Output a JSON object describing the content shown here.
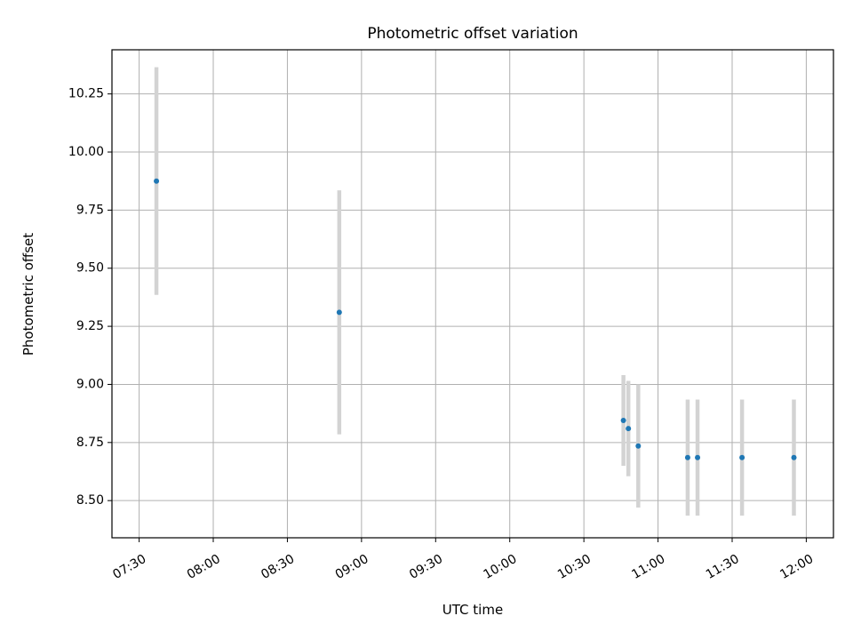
{
  "chart_data": {
    "type": "scatter",
    "title": "Photometric offset variation",
    "xlabel": "UTC time",
    "ylabel": "Photometric offset",
    "x_unit": "UTC time (HH:MM)",
    "xlim": [
      "07:19",
      "12:11"
    ],
    "ylim": [
      8.34,
      10.44
    ],
    "grid": true,
    "x_ticks": [
      "07:30",
      "08:00",
      "08:30",
      "09:00",
      "09:30",
      "10:00",
      "10:30",
      "11:00",
      "11:30",
      "12:00"
    ],
    "y_ticks": [
      8.5,
      8.75,
      9.0,
      9.25,
      9.5,
      9.75,
      10.0,
      10.25
    ],
    "y_tick_labels": [
      "8.50",
      "8.75",
      "9.00",
      "9.25",
      "9.50",
      "9.75",
      "10.00",
      "10.25"
    ],
    "points": [
      {
        "x": "07:37",
        "y": 9.875,
        "err": 0.49
      },
      {
        "x": "08:51",
        "y": 9.31,
        "err": 0.525
      },
      {
        "x": "10:46",
        "y": 8.845,
        "err": 0.195
      },
      {
        "x": "10:48",
        "y": 8.81,
        "err": 0.205
      },
      {
        "x": "10:52",
        "y": 8.735,
        "err": 0.265
      },
      {
        "x": "11:12",
        "y": 8.685,
        "err": 0.25
      },
      {
        "x": "11:16",
        "y": 8.685,
        "err": 0.25
      },
      {
        "x": "11:34",
        "y": 8.685,
        "err": 0.25
      },
      {
        "x": "11:55",
        "y": 8.685,
        "err": 0.25
      }
    ],
    "colors": {
      "marker": "#1f77b4",
      "errorbar": "#d3d3d3",
      "grid": "#b0b0b0"
    }
  }
}
